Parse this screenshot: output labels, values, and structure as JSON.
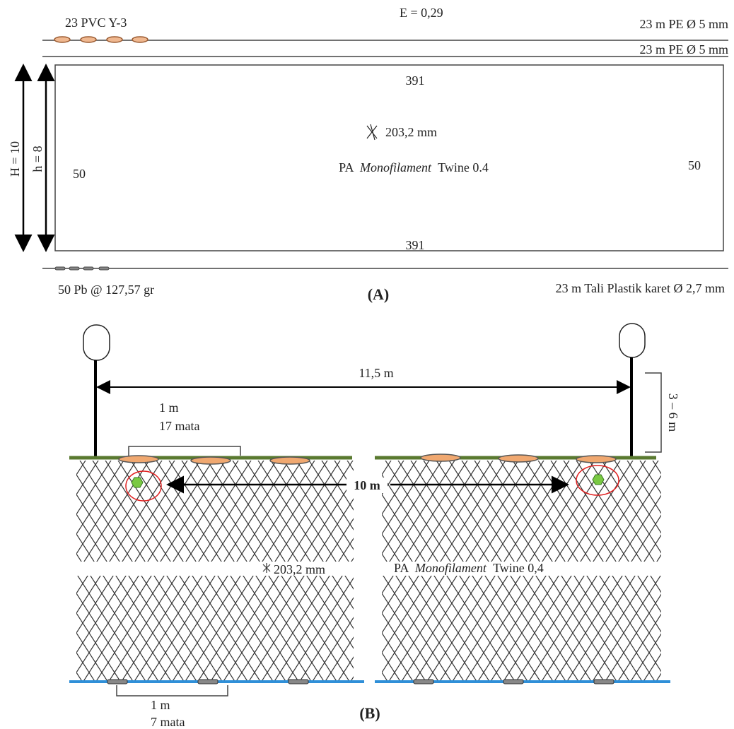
{
  "panel_a": {
    "float_label": "23 PVC Y-3",
    "hanging_ratio": "E = 0,29",
    "head_rope": "23 m PE Ø 5 mm",
    "float_line": "23 m PE Ø 5 mm",
    "height_outer": "H = 10",
    "height_inner": "h = 8",
    "mesh_top": "391",
    "mesh_size": "203,2 mm",
    "material": {
      "prefix": "PA",
      "italic": "Monofilament",
      "suffix": "Twine 0.4"
    },
    "depth_left": "50",
    "depth_right": "50",
    "mesh_bottom": "391",
    "sinker": "50 Pb @ 127,57 gr",
    "lead_line": "23 m Tali Plastik karet Ø 2,7 mm",
    "caption": "(A)"
  },
  "panel_b": {
    "buoy_distance": "11,5 m",
    "buoy_depth": "3 – 6 m",
    "float_spacing": "1 m",
    "float_meshes": "17 mata",
    "marker_distance": "10 m",
    "mesh_size": "203,2 mm",
    "material": {
      "prefix": "PA",
      "italic": "Monofilament",
      "suffix": "Twine 0,4"
    },
    "sinker_spacing": "1 m",
    "sinker_meshes": "7 mata",
    "caption": "(B)"
  }
}
